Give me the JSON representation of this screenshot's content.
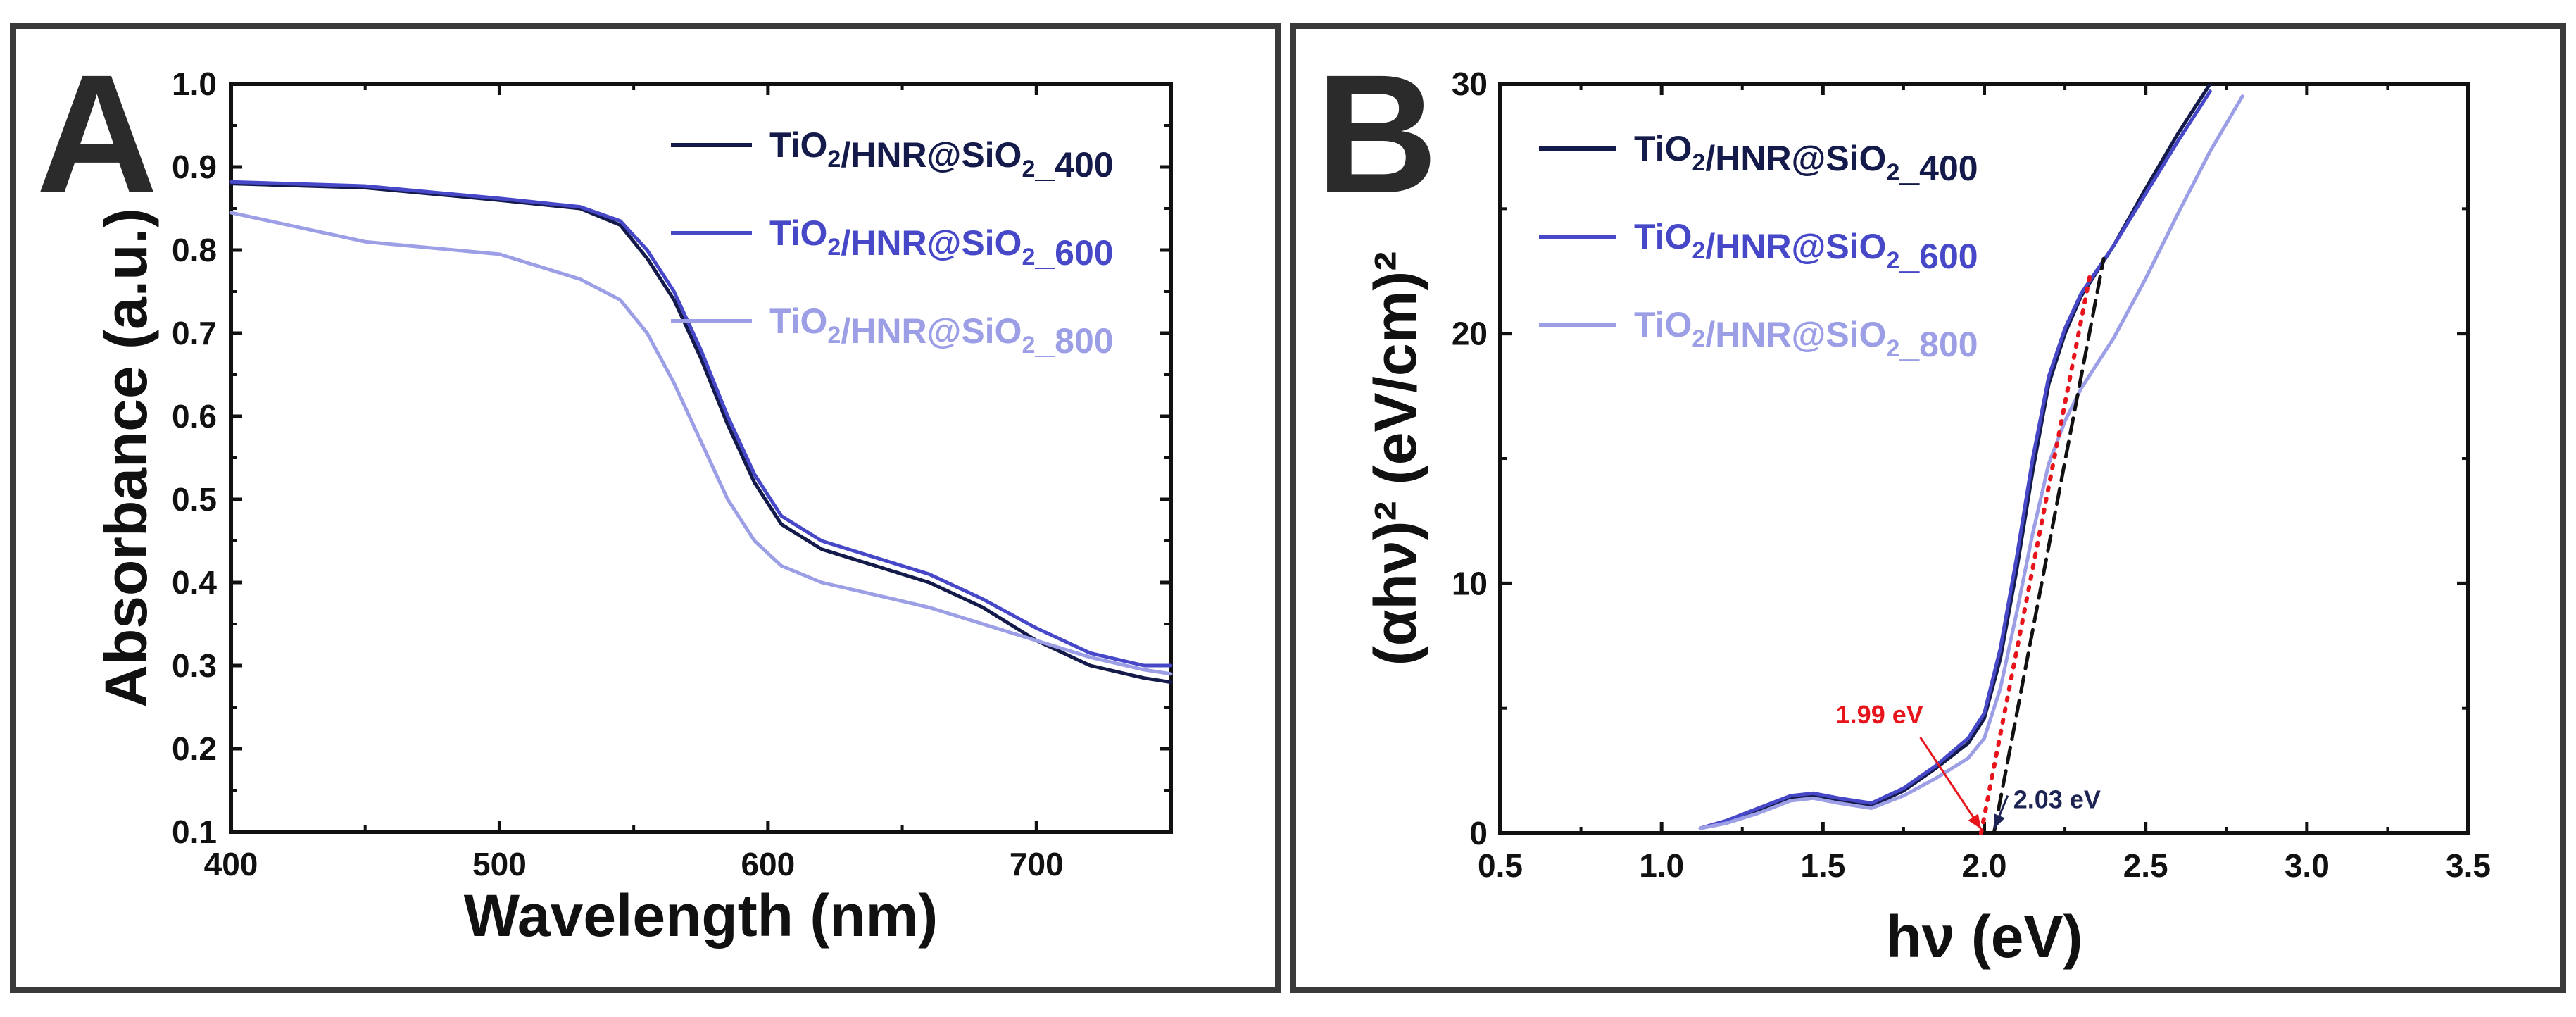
{
  "colors": {
    "series_400": "#141a4a",
    "series_600": "#4648c8",
    "series_800": "#9c9ee6",
    "annotation_red": "#e8141c",
    "annotation_dark": "#1d2352"
  },
  "chart_data": [
    {
      "panel": "A",
      "type": "line",
      "title": "",
      "xlabel": "Wavelength (nm)",
      "ylabel": "Absorbance (a.u.)",
      "xlim": [
        400,
        750
      ],
      "ylim": [
        0.1,
        1.0
      ],
      "xticks": [
        "400",
        "500",
        "600",
        "700"
      ],
      "yticks": [
        "0.1",
        "0.2",
        "0.3",
        "0.4",
        "0.5",
        "0.6",
        "0.7",
        "0.8",
        "0.9",
        "1.0"
      ],
      "legend_position": "top-right",
      "series": [
        {
          "name": "TiO2/HNR@SiO2_400",
          "legend_label": {
            "base": "TiO",
            "sub": "2",
            "mid": "/HNR@SiO",
            "sub2": "2",
            "tail": "_400"
          },
          "x": [
            400,
            450,
            500,
            530,
            545,
            555,
            565,
            575,
            585,
            595,
            605,
            620,
            640,
            660,
            680,
            700,
            720,
            740,
            750
          ],
          "y": [
            0.88,
            0.875,
            0.86,
            0.85,
            0.83,
            0.79,
            0.74,
            0.67,
            0.59,
            0.52,
            0.47,
            0.44,
            0.42,
            0.4,
            0.37,
            0.33,
            0.3,
            0.285,
            0.28
          ]
        },
        {
          "name": "TiO2/HNR@SiO2_600",
          "legend_label": {
            "base": "TiO",
            "sub": "2",
            "mid": "/HNR@SiO",
            "sub2": "2",
            "tail": "_600"
          },
          "x": [
            400,
            450,
            500,
            530,
            545,
            555,
            565,
            575,
            585,
            595,
            605,
            620,
            640,
            660,
            680,
            700,
            720,
            740,
            750
          ],
          "y": [
            0.882,
            0.877,
            0.862,
            0.852,
            0.835,
            0.8,
            0.75,
            0.68,
            0.6,
            0.53,
            0.48,
            0.45,
            0.43,
            0.41,
            0.38,
            0.345,
            0.315,
            0.3,
            0.3
          ]
        },
        {
          "name": "TiO2/HNR@SiO2_800",
          "legend_label": {
            "base": "TiO",
            "sub": "2",
            "mid": "/HNR@SiO",
            "sub2": "2",
            "tail": "_800"
          },
          "x": [
            400,
            450,
            500,
            530,
            545,
            555,
            565,
            575,
            585,
            595,
            605,
            620,
            640,
            660,
            680,
            700,
            720,
            740,
            750
          ],
          "y": [
            0.845,
            0.81,
            0.795,
            0.765,
            0.74,
            0.7,
            0.64,
            0.57,
            0.5,
            0.45,
            0.42,
            0.4,
            0.385,
            0.37,
            0.35,
            0.33,
            0.31,
            0.295,
            0.29
          ]
        }
      ]
    },
    {
      "panel": "B",
      "type": "line",
      "title": "",
      "xlabel": "hν (eV)",
      "ylabel": "(αhν)² (eV/cm)²",
      "xlim": [
        0.5,
        3.5
      ],
      "ylim": [
        0,
        30
      ],
      "xticks": [
        "0.5",
        "1.0",
        "1.5",
        "2.0",
        "2.5",
        "3.0",
        "3.5"
      ],
      "yticks": [
        "0",
        "10",
        "20",
        "30"
      ],
      "legend_position": "top-left",
      "series": [
        {
          "name": "TiO2/HNR@SiO2_400",
          "legend_label": {
            "base": "TiO",
            "sub": "2",
            "mid": "/HNR@SiO",
            "sub2": "2",
            "tail": "_400"
          },
          "x": [
            1.12,
            1.2,
            1.3,
            1.4,
            1.47,
            1.55,
            1.65,
            1.75,
            1.85,
            1.95,
            2.0,
            2.05,
            2.1,
            2.15,
            2.2,
            2.25,
            2.3,
            2.4,
            2.5,
            2.6,
            2.7
          ],
          "y": [
            0.2,
            0.4,
            0.9,
            1.4,
            1.5,
            1.3,
            1.1,
            1.7,
            2.6,
            3.6,
            4.6,
            7.0,
            10.5,
            14.5,
            18.0,
            20.0,
            21.5,
            23.5,
            25.8,
            28.0,
            30.0
          ]
        },
        {
          "name": "TiO2/HNR@SiO2_600",
          "legend_label": {
            "base": "TiO",
            "sub": "2",
            "mid": "/HNR@SiO",
            "sub2": "2",
            "tail": "_600"
          },
          "x": [
            1.12,
            1.2,
            1.3,
            1.4,
            1.47,
            1.55,
            1.65,
            1.75,
            1.85,
            1.95,
            2.0,
            2.05,
            2.1,
            2.15,
            2.2,
            2.25,
            2.3,
            2.4,
            2.5,
            2.6,
            2.7
          ],
          "y": [
            0.2,
            0.5,
            1.0,
            1.5,
            1.6,
            1.4,
            1.2,
            1.8,
            2.7,
            3.8,
            4.8,
            7.4,
            11.0,
            15.0,
            18.3,
            20.2,
            21.6,
            23.5,
            25.6,
            27.7,
            29.7
          ]
        },
        {
          "name": "TiO2/HNR@SiO2_800",
          "legend_label": {
            "base": "TiO",
            "sub": "2",
            "mid": "/HNR@SiO",
            "sub2": "2",
            "tail": "_800"
          },
          "x": [
            1.12,
            1.2,
            1.3,
            1.4,
            1.47,
            1.55,
            1.65,
            1.75,
            1.85,
            1.95,
            2.0,
            2.05,
            2.1,
            2.15,
            2.2,
            2.25,
            2.3,
            2.4,
            2.5,
            2.6,
            2.7,
            2.8
          ],
          "y": [
            0.2,
            0.4,
            0.8,
            1.3,
            1.4,
            1.2,
            1.0,
            1.5,
            2.2,
            3.0,
            3.8,
            5.8,
            8.8,
            12.0,
            14.8,
            16.5,
            17.8,
            19.8,
            22.2,
            24.8,
            27.3,
            29.5
          ]
        }
      ],
      "fit_lines": [
        {
          "label": "1.99 eV",
          "color": "red",
          "style": "dotted",
          "x": [
            1.99,
            2.33
          ],
          "y": [
            0,
            22.5
          ]
        },
        {
          "label": "2.03 eV",
          "color": "dark",
          "style": "dashed",
          "x": [
            2.03,
            2.37
          ],
          "y": [
            0,
            23.0
          ]
        }
      ],
      "annotations": [
        {
          "text": "1.99  eV",
          "color": "red",
          "x": 1.54,
          "y": 4.4,
          "arrow_to": [
            1.99,
            0
          ]
        },
        {
          "text": "2.03  eV",
          "color": "dark",
          "x": 2.09,
          "y": 1.0,
          "arrow_to": [
            2.03,
            0
          ]
        }
      ]
    }
  ]
}
